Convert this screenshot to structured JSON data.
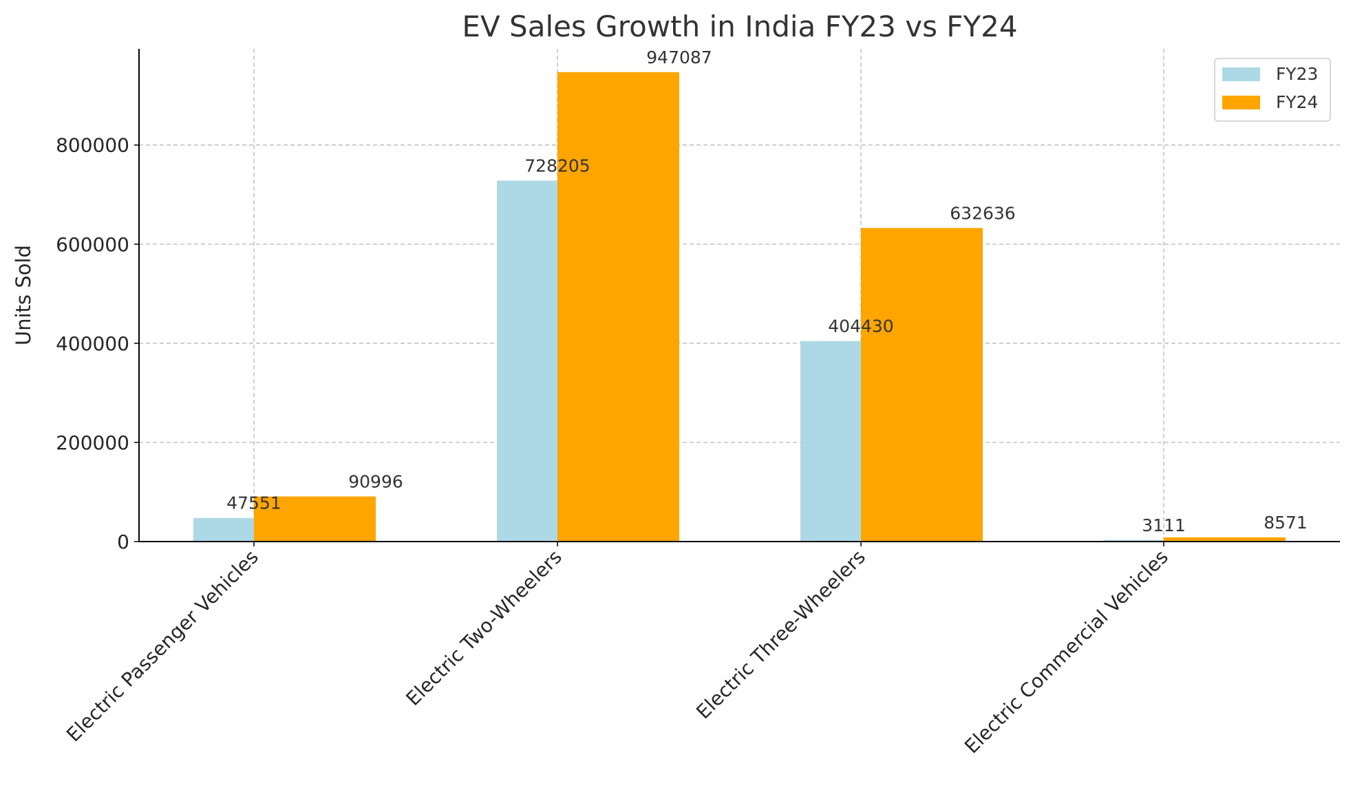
{
  "chart_data": {
    "type": "bar",
    "title": "EV Sales Growth in India FY23 vs FY24",
    "xlabel": "",
    "ylabel": "Units Sold",
    "categories": [
      "Electric Passenger Vehicles",
      "Electric Two-Wheelers",
      "Electric Three-Wheelers",
      "Electric Commercial Vehicles"
    ],
    "series": [
      {
        "name": "FY23",
        "values": [
          47551,
          728205,
          404430,
          3111
        ],
        "color": "#add8e6"
      },
      {
        "name": "FY24",
        "values": [
          90996,
          947087,
          632636,
          8571
        ],
        "color": "#ffa500"
      }
    ],
    "yticks": [
      0,
      200000,
      400000,
      600000,
      800000
    ],
    "ylim": [
      0,
      994000
    ],
    "grid": true,
    "legend": "top-right",
    "data_labels": true
  }
}
